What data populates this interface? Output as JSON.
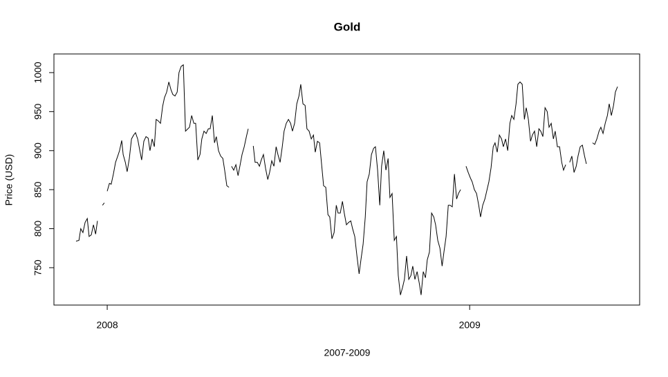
{
  "chart_data": {
    "type": "line",
    "title": "Gold",
    "x_label": "2007-2009",
    "y_label": "Price (USD)",
    "xlim": [
      2007.853,
      2009.469
    ],
    "xticks": [
      2008,
      2009
    ],
    "ylim": [
      702.1,
      1023.9
    ],
    "yticks": [
      750,
      800,
      850,
      900,
      950,
      1000
    ],
    "grid": false,
    "color": "#000000",
    "x": [
      2007.914,
      2007.922,
      2007.927,
      2007.933,
      2007.939,
      2007.945,
      2007.95,
      2007.956,
      2007.962,
      2007.968,
      2007.973,
      2007.979,
      2007.987,
      2007.992,
      2007.996,
      2008.0,
      2008.006,
      2008.011,
      2008.017,
      2008.023,
      2008.029,
      2008.034,
      2008.04,
      2008.044,
      2008.05,
      2008.055,
      2008.061,
      2008.067,
      2008.073,
      2008.078,
      2008.084,
      2008.09,
      2008.095,
      2008.101,
      2008.107,
      2008.113,
      2008.118,
      2008.124,
      2008.13,
      2008.135,
      2008.141,
      2008.147,
      2008.153,
      2008.158,
      2008.164,
      2008.17,
      2008.176,
      2008.181,
      2008.187,
      2008.193,
      2008.198,
      2008.204,
      2008.21,
      2008.216,
      2008.227,
      2008.233,
      2008.239,
      2008.244,
      2008.25,
      2008.256,
      2008.261,
      2008.267,
      2008.273,
      2008.279,
      2008.284,
      2008.29,
      2008.296,
      2008.301,
      2008.307,
      2008.313,
      2008.319,
      2008.324,
      2008.33,
      2008.336,
      2008.34,
      2008.343,
      2008.349,
      2008.355,
      2008.361,
      2008.366,
      2008.372,
      2008.378,
      2008.384,
      2008.389,
      2008.395,
      2008.403,
      2008.408,
      2008.414,
      2008.42,
      2008.425,
      2008.431,
      2008.437,
      2008.443,
      2008.448,
      2008.454,
      2008.46,
      2008.466,
      2008.471,
      2008.477,
      2008.483,
      2008.488,
      2008.494,
      2008.5,
      2008.506,
      2008.511,
      2008.517,
      2008.523,
      2008.529,
      2008.534,
      2008.54,
      2008.546,
      2008.551,
      2008.557,
      2008.563,
      2008.569,
      2008.574,
      2008.58,
      2008.586,
      2008.592,
      2008.597,
      2008.603,
      2008.609,
      2008.614,
      2008.62,
      2008.626,
      2008.632,
      2008.637,
      2008.643,
      2008.649,
      2008.654,
      2008.66,
      2008.666,
      2008.672,
      2008.677,
      2008.683,
      2008.689,
      2008.695,
      2008.7,
      2008.706,
      2008.712,
      2008.717,
      2008.723,
      2008.729,
      2008.735,
      2008.74,
      2008.746,
      2008.752,
      2008.757,
      2008.763,
      2008.769,
      2008.775,
      2008.78,
      2008.786,
      2008.792,
      2008.798,
      2008.803,
      2008.809,
      2008.815,
      2008.82,
      2008.826,
      2008.832,
      2008.838,
      2008.843,
      2008.849,
      2008.855,
      2008.861,
      2008.866,
      2008.872,
      2008.878,
      2008.883,
      2008.889,
      2008.895,
      2008.901,
      2008.906,
      2008.912,
      2008.918,
      2008.924,
      2008.929,
      2008.935,
      2008.941,
      2008.946,
      2008.952,
      2008.958,
      2008.964,
      2008.969,
      2008.975,
      2008.983,
      2008.99,
      2008.996,
      2009.002,
      2009.007,
      2009.013,
      2009.019,
      2009.025,
      2009.03,
      2009.036,
      2009.042,
      2009.048,
      2009.053,
      2009.059,
      2009.065,
      2009.07,
      2009.076,
      2009.082,
      2009.088,
      2009.093,
      2009.099,
      2009.105,
      2009.111,
      2009.116,
      2009.122,
      2009.128,
      2009.133,
      2009.139,
      2009.145,
      2009.151,
      2009.156,
      2009.162,
      2009.168,
      2009.173,
      2009.179,
      2009.185,
      2009.191,
      2009.196,
      2009.202,
      2009.208,
      2009.214,
      2009.219,
      2009.225,
      2009.231,
      2009.236,
      2009.242,
      2009.248,
      2009.254,
      2009.259,
      2009.265,
      2009.271,
      2009.276,
      2009.282,
      2009.288,
      2009.294,
      2009.299,
      2009.305,
      2009.311,
      2009.317,
      2009.322,
      2009.33,
      2009.339,
      2009.345,
      2009.351,
      2009.357,
      2009.362,
      2009.368,
      2009.374,
      2009.38,
      2009.385,
      2009.391,
      2009.397,
      2009.402,
      2009.408
    ],
    "values": [
      784,
      785,
      800,
      795,
      808,
      813,
      790,
      792,
      805,
      793,
      810,
      null,
      830,
      833,
      null,
      848,
      858,
      857,
      870,
      885,
      893,
      900,
      913,
      895,
      885,
      873,
      890,
      915,
      920,
      923,
      915,
      900,
      888,
      912,
      918,
      916,
      900,
      915,
      905,
      940,
      938,
      935,
      957,
      968,
      975,
      988,
      978,
      972,
      970,
      975,
      1000,
      1008,
      1010,
      925,
      930,
      945,
      935,
      935,
      888,
      895,
      915,
      925,
      922,
      928,
      928,
      945,
      910,
      918,
      900,
      893,
      890,
      875,
      855,
      853,
      null,
      880,
      875,
      882,
      868,
      880,
      895,
      905,
      918,
      928,
      null,
      906,
      885,
      885,
      880,
      888,
      895,
      877,
      863,
      872,
      887,
      880,
      905,
      895,
      885,
      905,
      925,
      935,
      940,
      935,
      925,
      935,
      960,
      970,
      985,
      960,
      958,
      928,
      925,
      915,
      920,
      898,
      912,
      910,
      880,
      855,
      853,
      818,
      815,
      787,
      795,
      830,
      820,
      820,
      835,
      820,
      805,
      808,
      810,
      800,
      790,
      765,
      742,
      760,
      780,
      815,
      860,
      870,
      895,
      903,
      905,
      875,
      830,
      880,
      900,
      875,
      890,
      840,
      845,
      785,
      790,
      740,
      715,
      725,
      735,
      765,
      735,
      740,
      752,
      735,
      745,
      730,
      715,
      745,
      737,
      760,
      770,
      820,
      815,
      805,
      785,
      775,
      752,
      770,
      790,
      830,
      830,
      828,
      870,
      838,
      845,
      850,
      null,
      880,
      872,
      865,
      860,
      850,
      845,
      830,
      815,
      830,
      838,
      850,
      860,
      878,
      905,
      910,
      898,
      920,
      915,
      905,
      915,
      900,
      935,
      945,
      940,
      960,
      985,
      988,
      985,
      940,
      955,
      940,
      912,
      920,
      925,
      905,
      928,
      925,
      918,
      955,
      950,
      930,
      935,
      915,
      925,
      905,
      905,
      885,
      875,
      882,
      null,
      885,
      893,
      872,
      880,
      893,
      905,
      907,
      893,
      883,
      null,
      910,
      908,
      915,
      925,
      930,
      922,
      935,
      945,
      960,
      945,
      958,
      975,
      982
    ]
  }
}
